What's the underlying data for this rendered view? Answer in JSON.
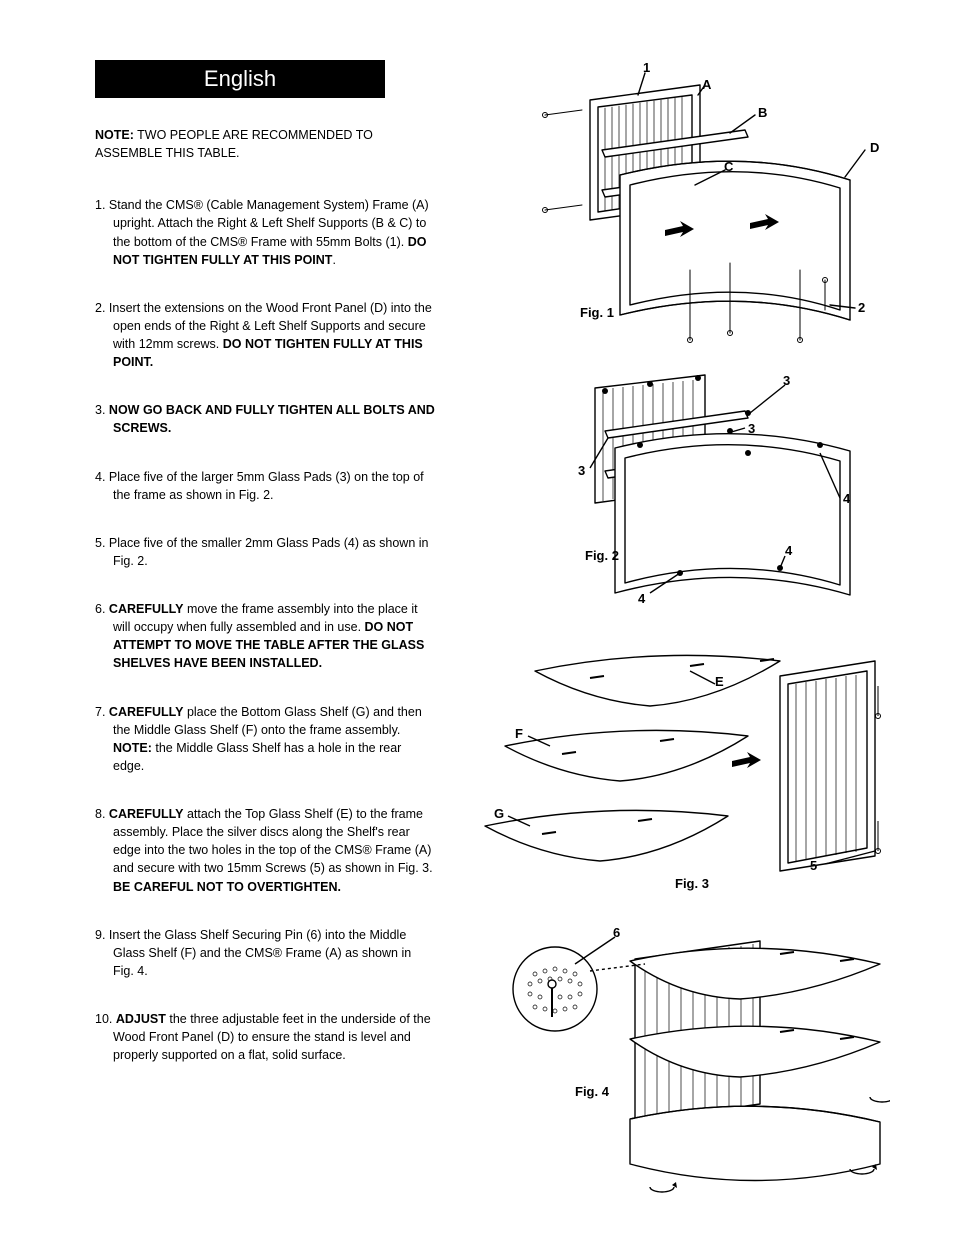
{
  "language_banner": "English",
  "note": {
    "label": "NOTE:",
    "text": " TWO PEOPLE ARE RECOMMENDED TO ASSEMBLE THIS TABLE."
  },
  "steps": [
    {
      "n": "1.",
      "html": "Stand the CMS® (Cable Management System) Frame (A) upright. Attach the Right & Left Shelf Supports (B & C) to the bottom of the CMS® Frame with 55mm Bolts (1). <b>DO NOT TIGHTEN FULLY AT THIS POINT</b>."
    },
    {
      "n": "2.",
      "html": "Insert the extensions on the Wood Front Panel (D) into the open ends of the Right & Left Shelf Supports and secure with  12mm screws. <b>DO NOT TIGHTEN FULLY AT THIS POINT.</b>"
    },
    {
      "n": "3.",
      "html": "<b>NOW GO BACK AND FULLY TIGHTEN ALL BOLTS AND SCREWS.</b>"
    },
    {
      "n": "4.",
      "html": "Place five of the larger 5mm Glass Pads (3) on the top of the frame as shown in Fig. 2."
    },
    {
      "n": "5.",
      "html": "Place five of the smaller 2mm Glass Pads (4) as shown in Fig. 2."
    },
    {
      "n": "6.",
      "html": "<b>CAREFULLY</b> move the frame assembly into the place it will occupy when fully assembled and in use. <b>DO NOT ATTEMPT TO MOVE THE TABLE AFTER THE GLASS SHELVES HAVE BEEN INSTALLED.</b>"
    },
    {
      "n": "7.",
      "html": "<b>CAREFULLY</b> place the Bottom Glass Shelf (G) and then the Middle Glass Shelf (F) onto the frame assembly. <b>NOTE:</b> the Middle Glass Shelf has a hole in the rear edge."
    },
    {
      "n": "8.",
      "html": "<b>CAREFULLY</b> attach the Top Glass Shelf (E) to the frame assembly. Place the silver discs along the Shelf's rear edge into the two holes in the top of the CMS® Frame (A) and secure with two 15mm Screws (5) as shown in Fig. 3. <b>BE CAREFUL NOT TO OVERTIGHTEN.</b>"
    },
    {
      "n": "9.",
      "html": "Insert the Glass Shelf Securing Pin (6) into the Middle Glass Shelf (F) and the CMS® Frame (A) as shown in Fig. 4."
    },
    {
      "n": "10.",
      "html": "<b>ADJUST</b> the three adjustable feet in the underside of the Wood Front Panel (D) to ensure the stand is level and properly supported on a flat, solid surface."
    }
  ],
  "figures": {
    "fig1": {
      "label": "Fig. 1",
      "callouts": [
        "1",
        "A",
        "B",
        "C",
        "D",
        "2"
      ]
    },
    "fig2": {
      "label": "Fig. 2",
      "callouts": [
        "3",
        "3",
        "3",
        "4",
        "4",
        "4"
      ]
    },
    "fig3": {
      "label": "Fig. 3",
      "callouts": [
        "E",
        "F",
        "G",
        "5"
      ]
    },
    "fig4": {
      "label": "Fig. 4",
      "callouts": [
        "6"
      ]
    }
  },
  "style": {
    "bg": "#ffffff",
    "fg": "#000000",
    "banner_bg": "#000000",
    "banner_fg": "#ffffff",
    "font_family": "Arial, Helvetica, sans-serif",
    "body_font_size_pt": 9.5,
    "banner_font_size_pt": 16,
    "stroke": "#000000",
    "stroke_width": 1.4
  }
}
